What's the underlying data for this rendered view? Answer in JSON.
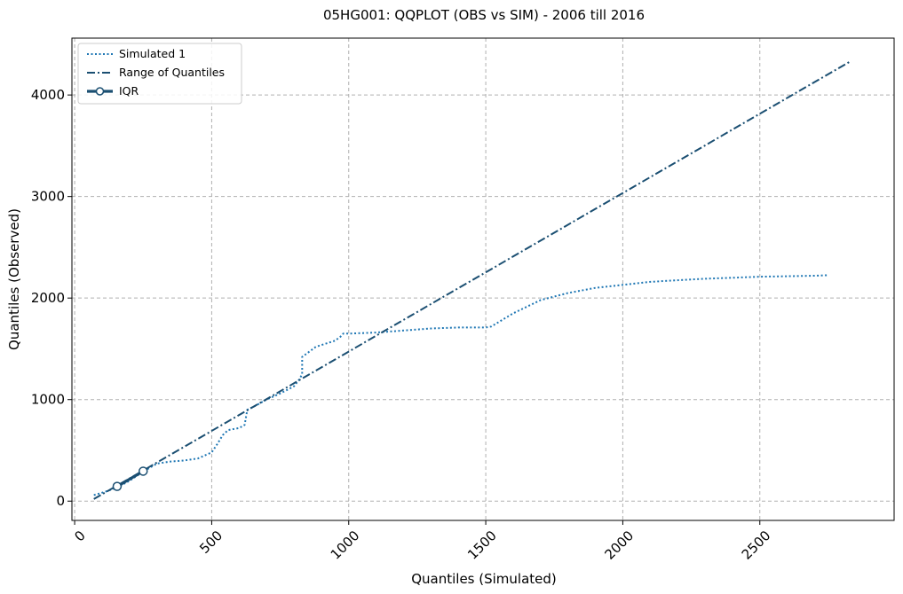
{
  "chart_data": {
    "type": "line",
    "title": "05HG001: QQPLOT (OBS vs SIM) - 2006 till 2016",
    "xlabel": "Quantiles (Simulated)",
    "ylabel": "Quantiles (Observed)",
    "xlim": [
      -10,
      2990
    ],
    "ylim": [
      -190,
      4560
    ],
    "x_ticks": [
      0,
      500,
      1000,
      1500,
      2000,
      2500
    ],
    "x_tick_labels": [
      "0",
      "500",
      "1000",
      "1500",
      "2000",
      "2500"
    ],
    "y_ticks": [
      0,
      1000,
      2000,
      3000,
      4000
    ],
    "y_tick_labels": [
      "0",
      "1000",
      "2000",
      "3000",
      "4000"
    ],
    "grid": true,
    "legend_position": "top-left",
    "colors": {
      "simulated": "#1f77b4",
      "range": "#1b4f72",
      "iqr": "#1b4f72"
    },
    "series": [
      {
        "name": "Simulated 1",
        "style": "dotted",
        "x": [
          70,
          110,
          160,
          200,
          250,
          300,
          350,
          400,
          450,
          500,
          520,
          540,
          560,
          600,
          620,
          630,
          660,
          700,
          750,
          800,
          820,
          830,
          830,
          880,
          950,
          970,
          980,
          990,
          1000,
          1050,
          1100,
          1200,
          1300,
          1400,
          1500,
          1520,
          1600,
          1700,
          1800,
          1900,
          2000,
          2100,
          2200,
          2300,
          2400,
          2500,
          2600,
          2700,
          2750
        ],
        "y": [
          60,
          90,
          140,
          200,
          290,
          370,
          390,
          400,
          420,
          480,
          560,
          650,
          700,
          720,
          750,
          900,
          940,
          1000,
          1060,
          1130,
          1200,
          1250,
          1420,
          1520,
          1580,
          1620,
          1650,
          1650,
          1650,
          1655,
          1660,
          1680,
          1700,
          1710,
          1710,
          1720,
          1850,
          1980,
          2050,
          2100,
          2130,
          2160,
          2175,
          2190,
          2200,
          2210,
          2215,
          2220,
          2225
        ]
      },
      {
        "name": "Range of Quantiles",
        "style": "dashdot",
        "x": [
          70,
          2830
        ],
        "y": [
          20,
          4330
        ]
      },
      {
        "name": "IQR",
        "style": "solid-markers",
        "x": [
          155,
          250
        ],
        "y": [
          145,
          295
        ]
      }
    ]
  }
}
